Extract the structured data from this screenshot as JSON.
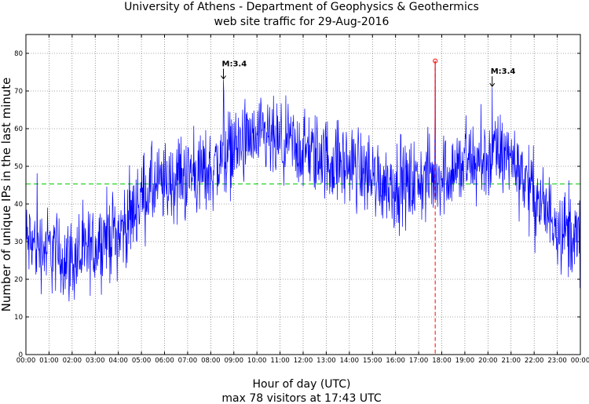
{
  "chart_data": {
    "type": "line",
    "title": "University of Athens - Department of Geophysics & Geothermics",
    "subtitle": "web site traffic for 29-Aug-2016",
    "xlabel": "Hour of day (UTC)",
    "ylabel": "Number of unique IPs in the last minute",
    "footer": "max 78 visitors at 17:43 UTC",
    "x_ticks": [
      "00:00",
      "01:00",
      "02:00",
      "03:00",
      "04:00",
      "05:00",
      "06:00",
      "07:00",
      "08:00",
      "09:00",
      "10:00",
      "11:00",
      "12:00",
      "13:00",
      "14:00",
      "15:00",
      "16:00",
      "17:00",
      "18:00",
      "19:00",
      "20:00",
      "21:00",
      "22:00",
      "23:00",
      "00:00"
    ],
    "y_ticks": [
      0,
      10,
      20,
      30,
      40,
      50,
      60,
      70,
      80
    ],
    "xlim_hours": [
      0,
      24
    ],
    "ylim": [
      0,
      85
    ],
    "grid": true,
    "series": [
      {
        "color": "#0000ff",
        "trend_hours": [
          0,
          0.5,
          1,
          1.5,
          2,
          2.5,
          3,
          3.5,
          4,
          4.5,
          5,
          5.5,
          6,
          6.5,
          7,
          7.5,
          8,
          8.5,
          9,
          9.5,
          10,
          10.5,
          11,
          11.5,
          12,
          12.5,
          13,
          13.5,
          14,
          14.5,
          15,
          15.5,
          16,
          16.5,
          17,
          17.5,
          18,
          18.5,
          19,
          19.5,
          20,
          20.5,
          21,
          21.5,
          22,
          22.5,
          23,
          23.5,
          24
        ],
        "trend_values": [
          30,
          29,
          28,
          26,
          25,
          26,
          29,
          32,
          32,
          36,
          42,
          44,
          45,
          46,
          47,
          48,
          49,
          52,
          55,
          56,
          56,
          57,
          55,
          55,
          54,
          53,
          52,
          51,
          50,
          49,
          47,
          46,
          45,
          45,
          46,
          47,
          48,
          49,
          50,
          51,
          52,
          53,
          52,
          48,
          42,
          38,
          35,
          32,
          30
        ],
        "noise_amplitude": 5,
        "samples_per_hour": 60
      }
    ],
    "mean_line": {
      "value": 45.3,
      "color": "#00cc00"
    },
    "max_marker": {
      "time": "17:43",
      "value": 78,
      "color": "#ff0000"
    },
    "annotations": [
      {
        "text": "M:3.4",
        "time": "08:33",
        "value": 73
      },
      {
        "text": "M:3.4",
        "time": "20:11",
        "value": 71
      }
    ]
  }
}
